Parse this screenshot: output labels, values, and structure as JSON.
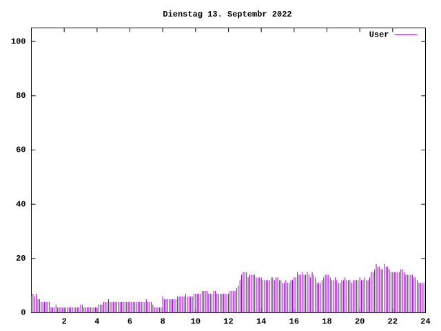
{
  "chart_data": {
    "type": "impulses",
    "title": "Dienstag 13. Septembr 2022",
    "x": [
      0,
      0.1,
      0.2,
      0.3,
      0.4,
      0.5,
      0.6,
      0.7,
      0.8,
      0.9,
      1,
      1.1,
      1.2,
      1.3,
      1.4,
      1.5,
      1.6,
      1.7,
      1.8,
      1.9,
      2,
      2.1,
      2.2,
      2.3,
      2.4,
      2.5,
      2.6,
      2.7,
      2.8,
      2.9,
      3,
      3.1,
      3.2,
      3.3,
      3.4,
      3.5,
      3.6,
      3.7,
      3.8,
      3.9,
      4,
      4.1,
      4.2,
      4.3,
      4.4,
      4.5,
      4.6,
      4.7,
      4.8,
      4.9,
      5,
      5.1,
      5.2,
      5.3,
      5.4,
      5.5,
      5.6,
      5.7,
      5.8,
      5.9,
      6,
      6.1,
      6.2,
      6.3,
      6.4,
      6.5,
      6.6,
      6.7,
      6.8,
      6.9,
      7,
      7.1,
      7.2,
      7.3,
      7.4,
      7.5,
      7.6,
      7.7,
      7.8,
      7.9,
      8,
      8.1,
      8.2,
      8.3,
      8.4,
      8.5,
      8.6,
      8.7,
      8.8,
      8.9,
      9,
      9.1,
      9.2,
      9.3,
      9.4,
      9.5,
      9.6,
      9.7,
      9.8,
      9.9,
      10,
      10.1,
      10.2,
      10.3,
      10.4,
      10.5,
      10.6,
      10.7,
      10.8,
      10.9,
      11,
      11.1,
      11.2,
      11.3,
      11.4,
      11.5,
      11.6,
      11.7,
      11.8,
      11.9,
      12,
      12.1,
      12.2,
      12.3,
      12.4,
      12.5,
      12.6,
      12.7,
      12.8,
      12.9,
      13,
      13.1,
      13.2,
      13.3,
      13.4,
      13.5,
      13.6,
      13.7,
      13.8,
      13.9,
      14,
      14.1,
      14.2,
      14.3,
      14.4,
      14.5,
      14.6,
      14.7,
      14.8,
      14.9,
      15,
      15.1,
      15.2,
      15.3,
      15.4,
      15.5,
      15.6,
      15.7,
      15.8,
      15.9,
      16,
      16.1,
      16.2,
      16.3,
      16.4,
      16.5,
      16.6,
      16.7,
      16.8,
      16.9,
      17,
      17.1,
      17.2,
      17.3,
      17.4,
      17.5,
      17.6,
      17.7,
      17.8,
      17.9,
      18,
      18.1,
      18.2,
      18.3,
      18.4,
      18.5,
      18.6,
      18.7,
      18.8,
      18.9,
      19,
      19.1,
      19.2,
      19.3,
      19.4,
      19.5,
      19.6,
      19.7,
      19.8,
      19.9,
      20,
      20.1,
      20.2,
      20.3,
      20.4,
      20.5,
      20.6,
      20.7,
      20.8,
      20.9,
      21,
      21.1,
      21.2,
      21.3,
      21.4,
      21.5,
      21.6,
      21.7,
      21.8,
      21.9,
      22,
      22.1,
      22.2,
      22.3,
      22.4,
      22.5,
      22.6,
      22.7,
      22.8,
      22.9,
      23,
      23.1,
      23.2,
      23.3,
      23.4,
      23.5,
      23.6,
      23.7,
      23.8,
      23.9
    ],
    "series": [
      {
        "name": "User",
        "color": "#9400d3",
        "values": [
          6,
          7,
          6,
          7,
          5,
          5,
          4,
          4,
          4,
          4,
          4,
          4,
          2,
          2,
          2,
          3,
          2,
          2,
          2,
          2,
          2,
          2,
          2,
          2,
          2,
          2,
          2,
          2,
          2,
          2,
          3,
          3,
          2,
          2,
          2,
          2,
          2,
          2,
          2,
          2,
          2,
          3,
          3,
          3,
          4,
          4,
          4,
          5,
          4,
          4,
          4,
          4,
          4,
          4,
          4,
          4,
          4,
          4,
          4,
          4,
          4,
          4,
          4,
          4,
          4,
          4,
          4,
          4,
          4,
          4,
          5,
          4,
          4,
          4,
          3,
          2,
          2,
          2,
          2,
          2,
          6,
          5,
          5,
          5,
          5,
          5,
          5,
          5,
          5,
          6,
          6,
          6,
          6,
          6,
          7,
          6,
          6,
          6,
          6,
          7,
          7,
          7,
          7,
          7,
          8,
          8,
          8,
          8,
          7,
          7,
          7,
          8,
          8,
          7,
          7,
          7,
          7,
          7,
          7,
          7,
          7,
          8,
          8,
          8,
          8,
          9,
          10,
          12,
          14,
          15,
          15,
          15,
          13,
          14,
          14,
          14,
          14,
          13,
          13,
          13,
          13,
          12,
          12,
          12,
          12,
          12,
          13,
          13,
          12,
          13,
          13,
          12,
          12,
          11,
          11,
          12,
          11,
          11,
          12,
          12,
          13,
          13,
          15,
          14,
          14,
          15,
          14,
          14,
          15,
          14,
          13,
          15,
          14,
          13,
          11,
          11,
          11,
          12,
          13,
          14,
          14,
          14,
          13,
          12,
          12,
          13,
          12,
          11,
          11,
          12,
          12,
          13,
          12,
          12,
          12,
          11,
          12,
          12,
          12,
          12,
          13,
          12,
          12,
          13,
          12,
          12,
          13,
          15,
          15,
          16,
          18,
          17,
          17,
          16,
          16,
          18,
          17,
          17,
          16,
          15,
          15,
          15,
          15,
          15,
          15,
          16,
          16,
          15,
          14,
          14,
          14,
          14,
          14,
          13,
          13,
          12,
          11,
          11,
          11,
          11
        ]
      }
    ],
    "xlim": [
      0,
      24
    ],
    "xticks": [
      2,
      4,
      6,
      8,
      10,
      12,
      14,
      16,
      18,
      20,
      22,
      24
    ],
    "ylim": [
      0,
      105
    ],
    "yticks": [
      0,
      20,
      40,
      60,
      80,
      100
    ],
    "legend": "top right"
  }
}
